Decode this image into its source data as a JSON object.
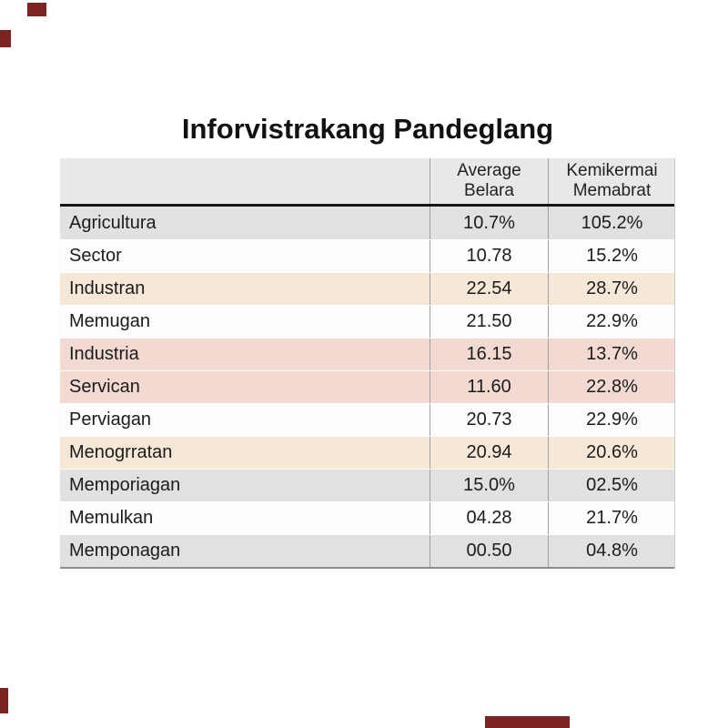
{
  "title": "Inforvistrakang Pandeglang",
  "chart_data": {
    "type": "table",
    "title": "Inforvistrakang Pandeglang",
    "columns": [
      {
        "label": "",
        "lines": [
          "",
          ""
        ]
      },
      {
        "label": "Average Belara",
        "lines": [
          "Average",
          "Belara"
        ]
      },
      {
        "label": "Kemikermai Memabrat",
        "lines": [
          "Kemikermai",
          "Memabrat"
        ]
      }
    ],
    "rows": [
      {
        "label": "Agricultura",
        "values": [
          "10.7%",
          "105.2%"
        ],
        "tint": "gray"
      },
      {
        "label": "Sector",
        "values": [
          "10.78",
          "15.2%"
        ],
        "tint": "white"
      },
      {
        "label": "Industran",
        "values": [
          "22.54",
          "28.7%"
        ],
        "tint": "peach"
      },
      {
        "label": "Memugan",
        "values": [
          "21.50",
          "22.9%"
        ],
        "tint": "white"
      },
      {
        "label": "Industria",
        "values": [
          "16.15",
          "13.7%"
        ],
        "tint": "pink"
      },
      {
        "label": "Servican",
        "values": [
          "11.60",
          "22.8%"
        ],
        "tint": "pink"
      },
      {
        "label": "Perviagan",
        "values": [
          "20.73",
          "22.9%"
        ],
        "tint": "white"
      },
      {
        "label": "Menogrratan",
        "values": [
          "20.94",
          "20.6%"
        ],
        "tint": "peach"
      },
      {
        "label": "Memporiagan",
        "values": [
          "15.0%",
          "02.5%"
        ],
        "tint": "gray"
      },
      {
        "label": "Memulkan",
        "values": [
          "04.28",
          "21.7%"
        ],
        "tint": "white"
      },
      {
        "label": "Memponagan",
        "values": [
          "00.50",
          "04.8%"
        ],
        "tint": "gray"
      }
    ]
  },
  "colors": {
    "row_tints": {
      "gray": "#e1e1e1",
      "white": "#fdfdfd",
      "peach": "#f6e8d6",
      "pink": "#f2dad2"
    },
    "header_bg": "#e8e8e6",
    "header_rule": "#161616",
    "grid_line": "#a0a0a0",
    "bottom_rule": "#8d8d8d",
    "text": "#1b1b1b",
    "artifact_mark": "#7c2323"
  }
}
